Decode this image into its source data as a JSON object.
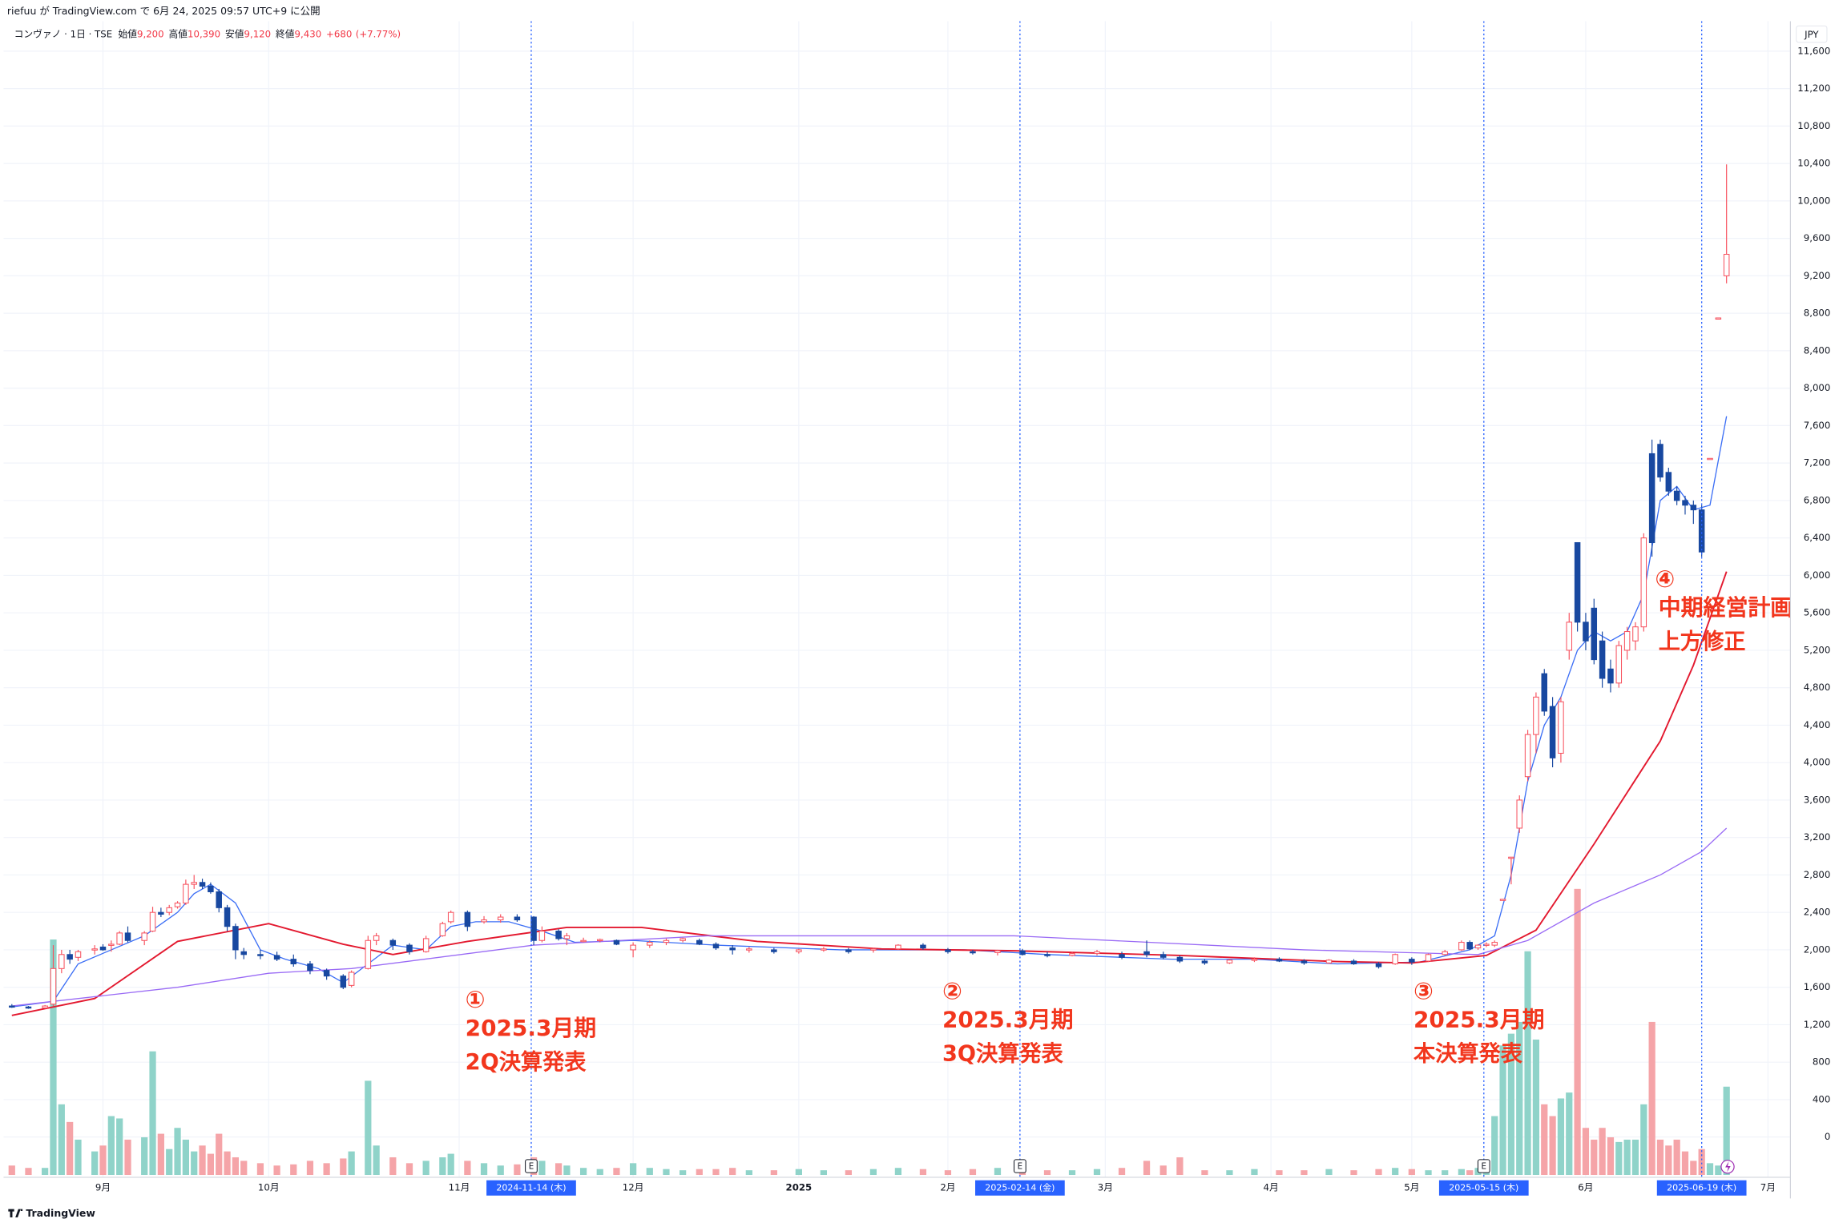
{
  "chart_data": {
    "type": "candlestick",
    "published": "riefuu が TradingView.com で 6月 24, 2025 09:57 UTC+9 に公開",
    "legend": {
      "symbol": "コンヴァノ · 1日 · TSE",
      "fields": [
        {
          "name": "始値",
          "value": 9200,
          "value_label": "9,200"
        },
        {
          "name": "高値",
          "value": 10390,
          "value_label": "10,390"
        },
        {
          "name": "安値",
          "value": 9120,
          "value_label": "9,120"
        },
        {
          "name": "終値",
          "value": 9430,
          "value_label": "9,430"
        }
      ],
      "change": 680,
      "change_label": "+680",
      "change_pct": 7.77,
      "change_pct_label": "(+7.77%)",
      "value_color": "#f23645"
    },
    "currency": "JPY",
    "brand": "TradingView",
    "up_color": "#f7525f",
    "down_color": "#1848a0",
    "volume_up_color": "#8fd3c9",
    "volume_down_color": "#f5a4a8",
    "grid": true,
    "xlim": [
      -1,
      214
    ],
    "ylim": [
      -430,
      11920
    ],
    "xticks": [
      {
        "value": 11,
        "label": "9月"
      },
      {
        "value": 31,
        "label": "10月"
      },
      {
        "value": 54,
        "label": "11月"
      },
      {
        "value": 75,
        "label": "12月"
      },
      {
        "value": 95,
        "label": "2025",
        "bold": true
      },
      {
        "value": 113,
        "label": "2月"
      },
      {
        "value": 132,
        "label": "3月"
      },
      {
        "value": 152,
        "label": "4月"
      },
      {
        "value": 169,
        "label": "5月"
      },
      {
        "value": 190,
        "label": "6月"
      },
      {
        "value": 212,
        "label": "7月"
      }
    ],
    "yticks": [
      0,
      400,
      800,
      {
        "value": 1200,
        "label": "1,200"
      },
      {
        "value": 1600,
        "label": "1,600"
      },
      {
        "value": 2000,
        "label": "2,000"
      },
      {
        "value": 2400,
        "label": "2,400"
      },
      {
        "value": 2800,
        "label": "2,800"
      },
      {
        "value": 3200,
        "label": "3,200"
      },
      {
        "value": 3600,
        "label": "3,600"
      },
      {
        "value": 4000,
        "label": "4,000"
      },
      {
        "value": 4400,
        "label": "4,400"
      },
      {
        "value": 4800,
        "label": "4,800"
      },
      {
        "value": 5200,
        "label": "5,200"
      },
      {
        "value": 5600,
        "label": "5,600"
      },
      {
        "value": 6000,
        "label": "6,000"
      },
      {
        "value": 6400,
        "label": "6,400"
      },
      {
        "value": 6800,
        "label": "6,800"
      },
      {
        "value": 7200,
        "label": "7,200"
      },
      {
        "value": 7600,
        "label": "7,600"
      },
      {
        "value": 8000,
        "label": "8,000"
      },
      {
        "value": 8400,
        "label": "8,400"
      },
      {
        "value": 8800,
        "label": "8,800"
      },
      {
        "value": 9200,
        "label": "9,200"
      },
      {
        "value": 9600,
        "label": "9,600"
      },
      {
        "value": 10000,
        "label": "10,000"
      },
      {
        "value": 10400,
        "label": "10,400"
      },
      {
        "value": 10800,
        "label": "10,800"
      },
      {
        "value": 11200,
        "label": "11,200"
      },
      {
        "value": 11600,
        "label": "11,600"
      }
    ],
    "x": [
      0,
      2,
      4,
      5,
      6,
      7,
      8,
      10,
      11,
      12,
      13,
      14,
      16,
      17,
      18,
      19,
      20,
      21,
      22,
      23,
      24,
      25,
      26,
      27,
      28,
      30,
      32,
      34,
      36,
      38,
      40,
      41,
      43,
      44,
      46,
      48,
      50,
      52,
      53,
      55,
      57,
      59,
      61,
      63,
      64,
      66,
      67,
      69,
      71,
      73,
      75,
      77,
      79,
      81,
      83,
      85,
      87,
      89,
      92,
      95,
      98,
      101,
      104,
      107,
      110,
      113,
      116,
      119,
      122,
      125,
      128,
      131,
      134,
      137,
      139,
      141,
      144,
      147,
      150,
      153,
      156,
      159,
      162,
      165,
      167,
      169,
      171,
      173,
      175,
      176,
      177,
      178,
      179,
      180,
      181,
      182,
      183,
      184,
      185,
      186,
      187,
      188,
      189,
      190,
      191,
      192,
      193,
      194,
      195,
      196,
      197,
      198,
      199,
      200,
      201,
      202,
      203,
      204,
      205,
      206,
      207
    ],
    "open": [
      1400,
      1390,
      1380,
      1420,
      1800,
      1950,
      1920,
      2000,
      2030,
      2050,
      2060,
      2180,
      2100,
      2200,
      2400,
      2400,
      2460,
      2500,
      2700,
      2720,
      2680,
      2620,
      2450,
      2250,
      1980,
      1950,
      1940,
      1900,
      1850,
      1780,
      1720,
      1620,
      1800,
      2100,
      2100,
      2050,
      1980,
      2150,
      2300,
      2400,
      2300,
      2320,
      2350,
      2350,
      2100,
      2200,
      2120,
      2100,
      2100,
      2100,
      2000,
      2050,
      2080,
      2100,
      2100,
      2060,
      2020,
      2000,
      2000,
      1980,
      2000,
      2000,
      2000,
      2010,
      2050,
      2000,
      1980,
      1970,
      1990,
      1950,
      1940,
      1960,
      1950,
      1980,
      1950,
      1920,
      1880,
      1860,
      1890,
      1900,
      1880,
      1860,
      1880,
      1850,
      1850,
      1900,
      1880,
      1950,
      2000,
      2080,
      2020,
      2050,
      2050,
      2540,
      2990,
      3300,
      3850,
      4300,
      4950,
      4600,
      4100,
      5200,
      6350,
      5500,
      5650,
      5300,
      5000,
      4850,
      5200,
      5300,
      5450,
      7300,
      7400,
      7100,
      6900,
      6800,
      6750,
      6700,
      7250,
      8750,
      9200
    ],
    "high": [
      1420,
      1400,
      1410,
      2050,
      2000,
      2000,
      2000,
      2050,
      2060,
      2100,
      2200,
      2250,
      2200,
      2460,
      2450,
      2480,
      2520,
      2750,
      2800,
      2760,
      2720,
      2650,
      2480,
      2280,
      2020,
      2000,
      1980,
      1950,
      1880,
      1800,
      1740,
      1780,
      2150,
      2180,
      2120,
      2070,
      2150,
      2300,
      2420,
      2420,
      2360,
      2380,
      2380,
      2360,
      2250,
      2220,
      2180,
      2130,
      2120,
      2110,
      2080,
      2100,
      2120,
      2130,
      2120,
      2080,
      2050,
      2030,
      2020,
      2010,
      2030,
      2020,
      2020,
      2060,
      2070,
      2020,
      2000,
      2000,
      2010,
      1980,
      1980,
      2000,
      1980,
      2100,
      1980,
      1940,
      1900,
      1900,
      1920,
      1920,
      1900,
      1900,
      1900,
      1870,
      1960,
      1920,
      1960,
      2000,
      2100,
      2100,
      2060,
      2080,
      2100,
      2540,
      2990,
      3650,
      4350,
      4750,
      5000,
      4700,
      4700,
      5600,
      6350,
      5600,
      5750,
      5400,
      5100,
      5300,
      5450,
      5500,
      6450,
      7450,
      7450,
      7150,
      6950,
      6850,
      6800,
      6750,
      7250,
      8750,
      10390
    ],
    "low": [
      1380,
      1370,
      1370,
      1400,
      1750,
      1850,
      1880,
      1950,
      1990,
      1980,
      2050,
      2080,
      2050,
      2190,
      2350,
      2370,
      2440,
      2480,
      2650,
      2650,
      2600,
      2400,
      2200,
      1900,
      1900,
      1900,
      1880,
      1820,
      1740,
      1680,
      1580,
      1600,
      1790,
      2050,
      2000,
      1950,
      1970,
      2140,
      2280,
      2200,
      2280,
      2290,
      2300,
      2050,
      2080,
      2100,
      2050,
      2080,
      2080,
      2050,
      1920,
      2020,
      2050,
      2080,
      2050,
      2000,
      1950,
      1970,
      1960,
      1960,
      1980,
      1960,
      1970,
      2000,
      2000,
      1960,
      1950,
      1940,
      1940,
      1920,
      1930,
      1940,
      1900,
      1920,
      1900,
      1860,
      1840,
      1850,
      1870,
      1870,
      1840,
      1850,
      1840,
      1800,
      1840,
      1840,
      1870,
      1940,
      1990,
      2000,
      2000,
      2030,
      2030,
      2530,
      2700,
      3250,
      3800,
      4100,
      4500,
      3950,
      4000,
      5100,
      5400,
      5200,
      5050,
      4800,
      4750,
      4800,
      5100,
      5200,
      5400,
      6200,
      7000,
      6850,
      6750,
      6650,
      6550,
      6200,
      7240,
      8740,
      9120
    ],
    "close": [
      1390,
      1380,
      1400,
      1800,
      1950,
      1900,
      1980,
      2010,
      2000,
      2060,
      2180,
      2100,
      2180,
      2400,
      2380,
      2450,
      2500,
      2700,
      2720,
      2680,
      2620,
      2450,
      2250,
      2000,
      1950,
      1940,
      1900,
      1850,
      1780,
      1720,
      1600,
      1760,
      2100,
      2150,
      2050,
      1980,
      2120,
      2280,
      2400,
      2250,
      2320,
      2350,
      2320,
      2100,
      2200,
      2120,
      2150,
      2100,
      2110,
      2060,
      2050,
      2080,
      2100,
      2120,
      2060,
      2020,
      2000,
      2010,
      1980,
      2000,
      2010,
      1980,
      2010,
      2050,
      2020,
      1980,
      1970,
      1990,
      1950,
      1940,
      1960,
      1980,
      1920,
      1950,
      1920,
      1880,
      1860,
      1890,
      1900,
      1880,
      1860,
      1890,
      1850,
      1820,
      1950,
      1870,
      1950,
      1980,
      2080,
      2010,
      2050,
      2060,
      2080,
      2540,
      2990,
      3600,
      4300,
      4700,
      4550,
      4050,
      4650,
      5500,
      5500,
      5300,
      5100,
      4900,
      4850,
      5250,
      5400,
      5450,
      6400,
      6350,
      7050,
      6900,
      6800,
      6750,
      6700,
      6250,
      7250,
      8750,
      9430
    ],
    "volume": [
      8000,
      6000,
      6000,
      200000,
      60000,
      45000,
      30000,
      20000,
      25000,
      50000,
      48000,
      30000,
      32000,
      105000,
      35000,
      22000,
      40000,
      30000,
      20000,
      25000,
      18000,
      35000,
      20000,
      15000,
      12000,
      10000,
      8000,
      9000,
      12000,
      10000,
      14000,
      20000,
      80000,
      25000,
      15000,
      10000,
      12000,
      15000,
      18000,
      12000,
      10000,
      8000,
      9000,
      15000,
      12000,
      10000,
      8000,
      6000,
      5000,
      6000,
      10000,
      6000,
      5000,
      4000,
      5000,
      5000,
      6000,
      4000,
      4000,
      5000,
      4000,
      4000,
      5000,
      6000,
      5000,
      4000,
      5000,
      6000,
      5000,
      4000,
      4000,
      5000,
      6000,
      12000,
      8000,
      15000,
      4000,
      4000,
      5000,
      4000,
      4000,
      5000,
      4000,
      5000,
      6000,
      5000,
      4000,
      4000,
      5000,
      4000,
      6000,
      8000,
      50000,
      110000,
      120000,
      130000,
      190000,
      115000,
      60000,
      50000,
      65000,
      70000,
      243000,
      40000,
      30000,
      40000,
      32000,
      28000,
      30000,
      30000,
      60000,
      130000,
      30000,
      25000,
      30000,
      20000,
      12000,
      22000,
      10000,
      8000,
      75000
    ],
    "ma": [
      {
        "color": "#3b6ef5",
        "x": [
          0,
          5,
          8,
          12,
          16,
          20,
          22,
          24,
          27,
          30,
          33,
          37,
          40,
          43,
          46,
          50,
          53,
          56,
          60,
          64,
          68,
          75,
          85,
          100,
          115,
          125,
          140,
          150,
          160,
          170,
          176,
          179,
          181,
          183,
          185,
          187,
          189,
          191,
          193,
          195,
          197,
          199,
          201,
          203,
          205,
          207
        ],
        "values": [
          1390,
          1450,
          1850,
          2000,
          2150,
          2400,
          2600,
          2700,
          2500,
          2000,
          1900,
          1800,
          1650,
          1850,
          2050,
          2000,
          2250,
          2300,
          2300,
          2200,
          2080,
          2100,
          2050,
          2000,
          2000,
          1950,
          1900,
          1900,
          1850,
          1870,
          2000,
          2150,
          2800,
          3800,
          4400,
          4700,
          5200,
          5400,
          5300,
          5400,
          5800,
          6800,
          6950,
          6700,
          6750,
          7700
        ]
      },
      {
        "color": "#e3192f",
        "x": [
          0,
          10,
          20,
          31,
          40,
          46,
          55,
          67,
          76,
          90,
          105,
          121,
          141,
          160,
          169,
          178,
          184,
          191,
          199,
          203,
          207
        ],
        "values": [
          1300,
          1480,
          2090,
          2280,
          2060,
          1950,
          2090,
          2240,
          2240,
          2090,
          2010,
          1990,
          1940,
          1875,
          1860,
          1940,
          2210,
          3130,
          4230,
          5040,
          6040
        ]
      },
      {
        "color": "#9a6bf5",
        "x": [
          0,
          20,
          31,
          41,
          63,
          84,
          121,
          156,
          177,
          183,
          191,
          199,
          204,
          207
        ],
        "values": [
          1400,
          1600,
          1750,
          1800,
          2050,
          2150,
          2150,
          2000,
          1950,
          2100,
          2500,
          2800,
          3050,
          3300
        ]
      }
    ],
    "events": [
      {
        "x": 62.7,
        "label": "2024-11-14 (木)",
        "marker": "E"
      },
      {
        "x": 121.7,
        "label": "2025-02-14 (金)",
        "marker": "E"
      },
      {
        "x": 177.7,
        "label": "2025-05-15 (木)",
        "marker": "E"
      },
      {
        "x": 204,
        "label": "2025-06-19 (木)"
      }
    ],
    "annotations": [
      {
        "lines": [
          "①",
          "2025.3月期",
          "2Q決算発表"
        ]
      },
      {
        "lines": [
          "②",
          "2025.3月期",
          "3Q決算発表"
        ]
      },
      {
        "lines": [
          "③",
          "2025.3月期",
          "本決算発表"
        ]
      },
      {
        "lines": [
          "④",
          "中期経営計画の",
          "上方修正"
        ]
      }
    ]
  }
}
